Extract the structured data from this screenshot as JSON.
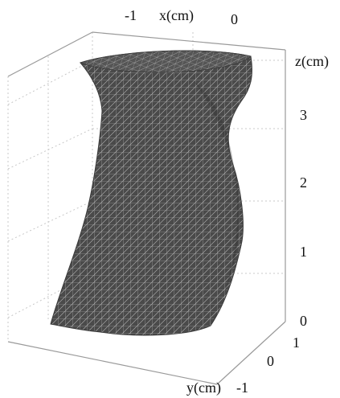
{
  "axes": {
    "x": {
      "label": "x(cm)",
      "ticks": [
        "-1",
        "0"
      ]
    },
    "y": {
      "label": "y(cm)",
      "ticks": [
        "-1",
        "0",
        "1"
      ]
    },
    "z": {
      "label": "z(cm)",
      "ticks": [
        "0",
        "1",
        "2",
        "3"
      ]
    }
  },
  "colors": {
    "mesh_fill": "#4a4a4a",
    "mesh_line": "#b8b8b8",
    "grid": "#c8c8c8",
    "box": "#9a9a9a",
    "background": "#ffffff"
  },
  "object": "gray-triangulated-surface-mesh"
}
